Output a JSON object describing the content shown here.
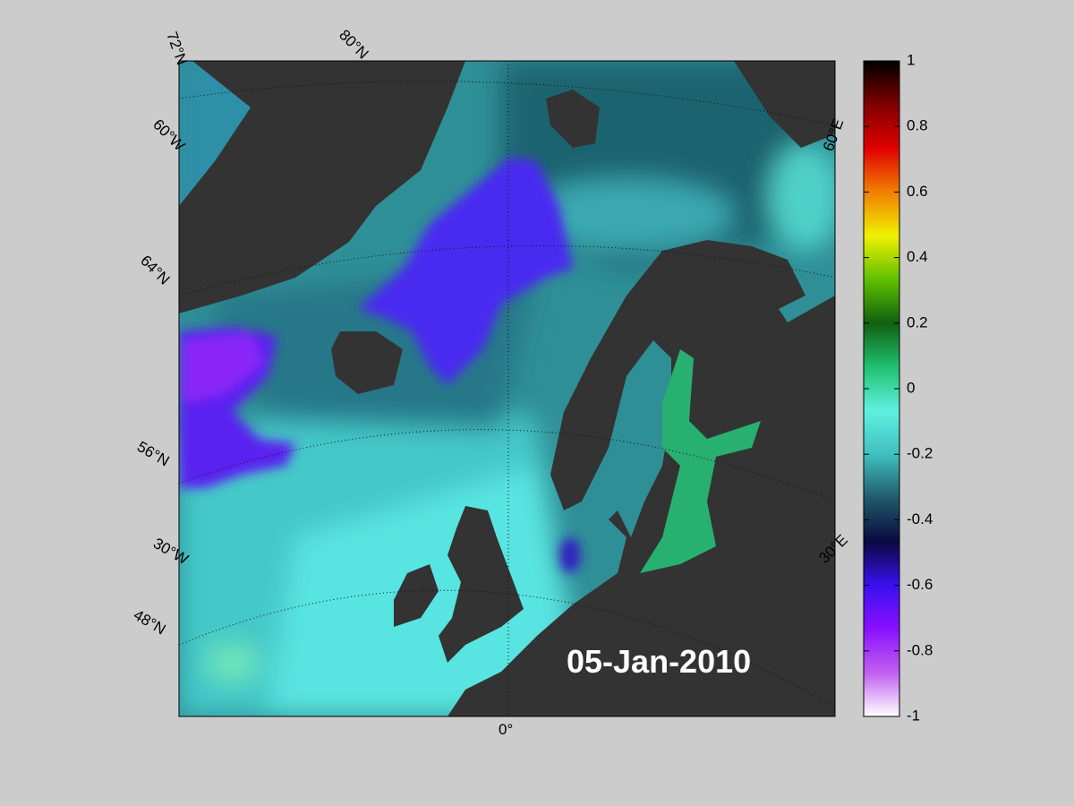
{
  "map": {
    "date_label": "05-Jan-2010",
    "graticule_labels": [
      "72°N",
      "80°N",
      "60°W",
      "64°N",
      "56°N",
      "30°W",
      "48°N",
      "0°",
      "60°E",
      "30°E"
    ]
  },
  "colorbar": {
    "lim": [
      -1,
      1
    ],
    "ticks": [
      1,
      0.8,
      0.6,
      0.4,
      0.2,
      0,
      -0.2,
      -0.4,
      -0.6,
      -0.8,
      -1
    ],
    "colors": [
      "#ffffff",
      "#c060f0",
      "#8a10ff",
      "#3a10f0",
      "#0a0a40",
      "#205a6a",
      "#40c0c0",
      "#60f0e0",
      "#20c070",
      "#106010",
      "#60c000",
      "#f0f000",
      "#f08000",
      "#e00000",
      "#800000",
      "#000000"
    ]
  }
}
